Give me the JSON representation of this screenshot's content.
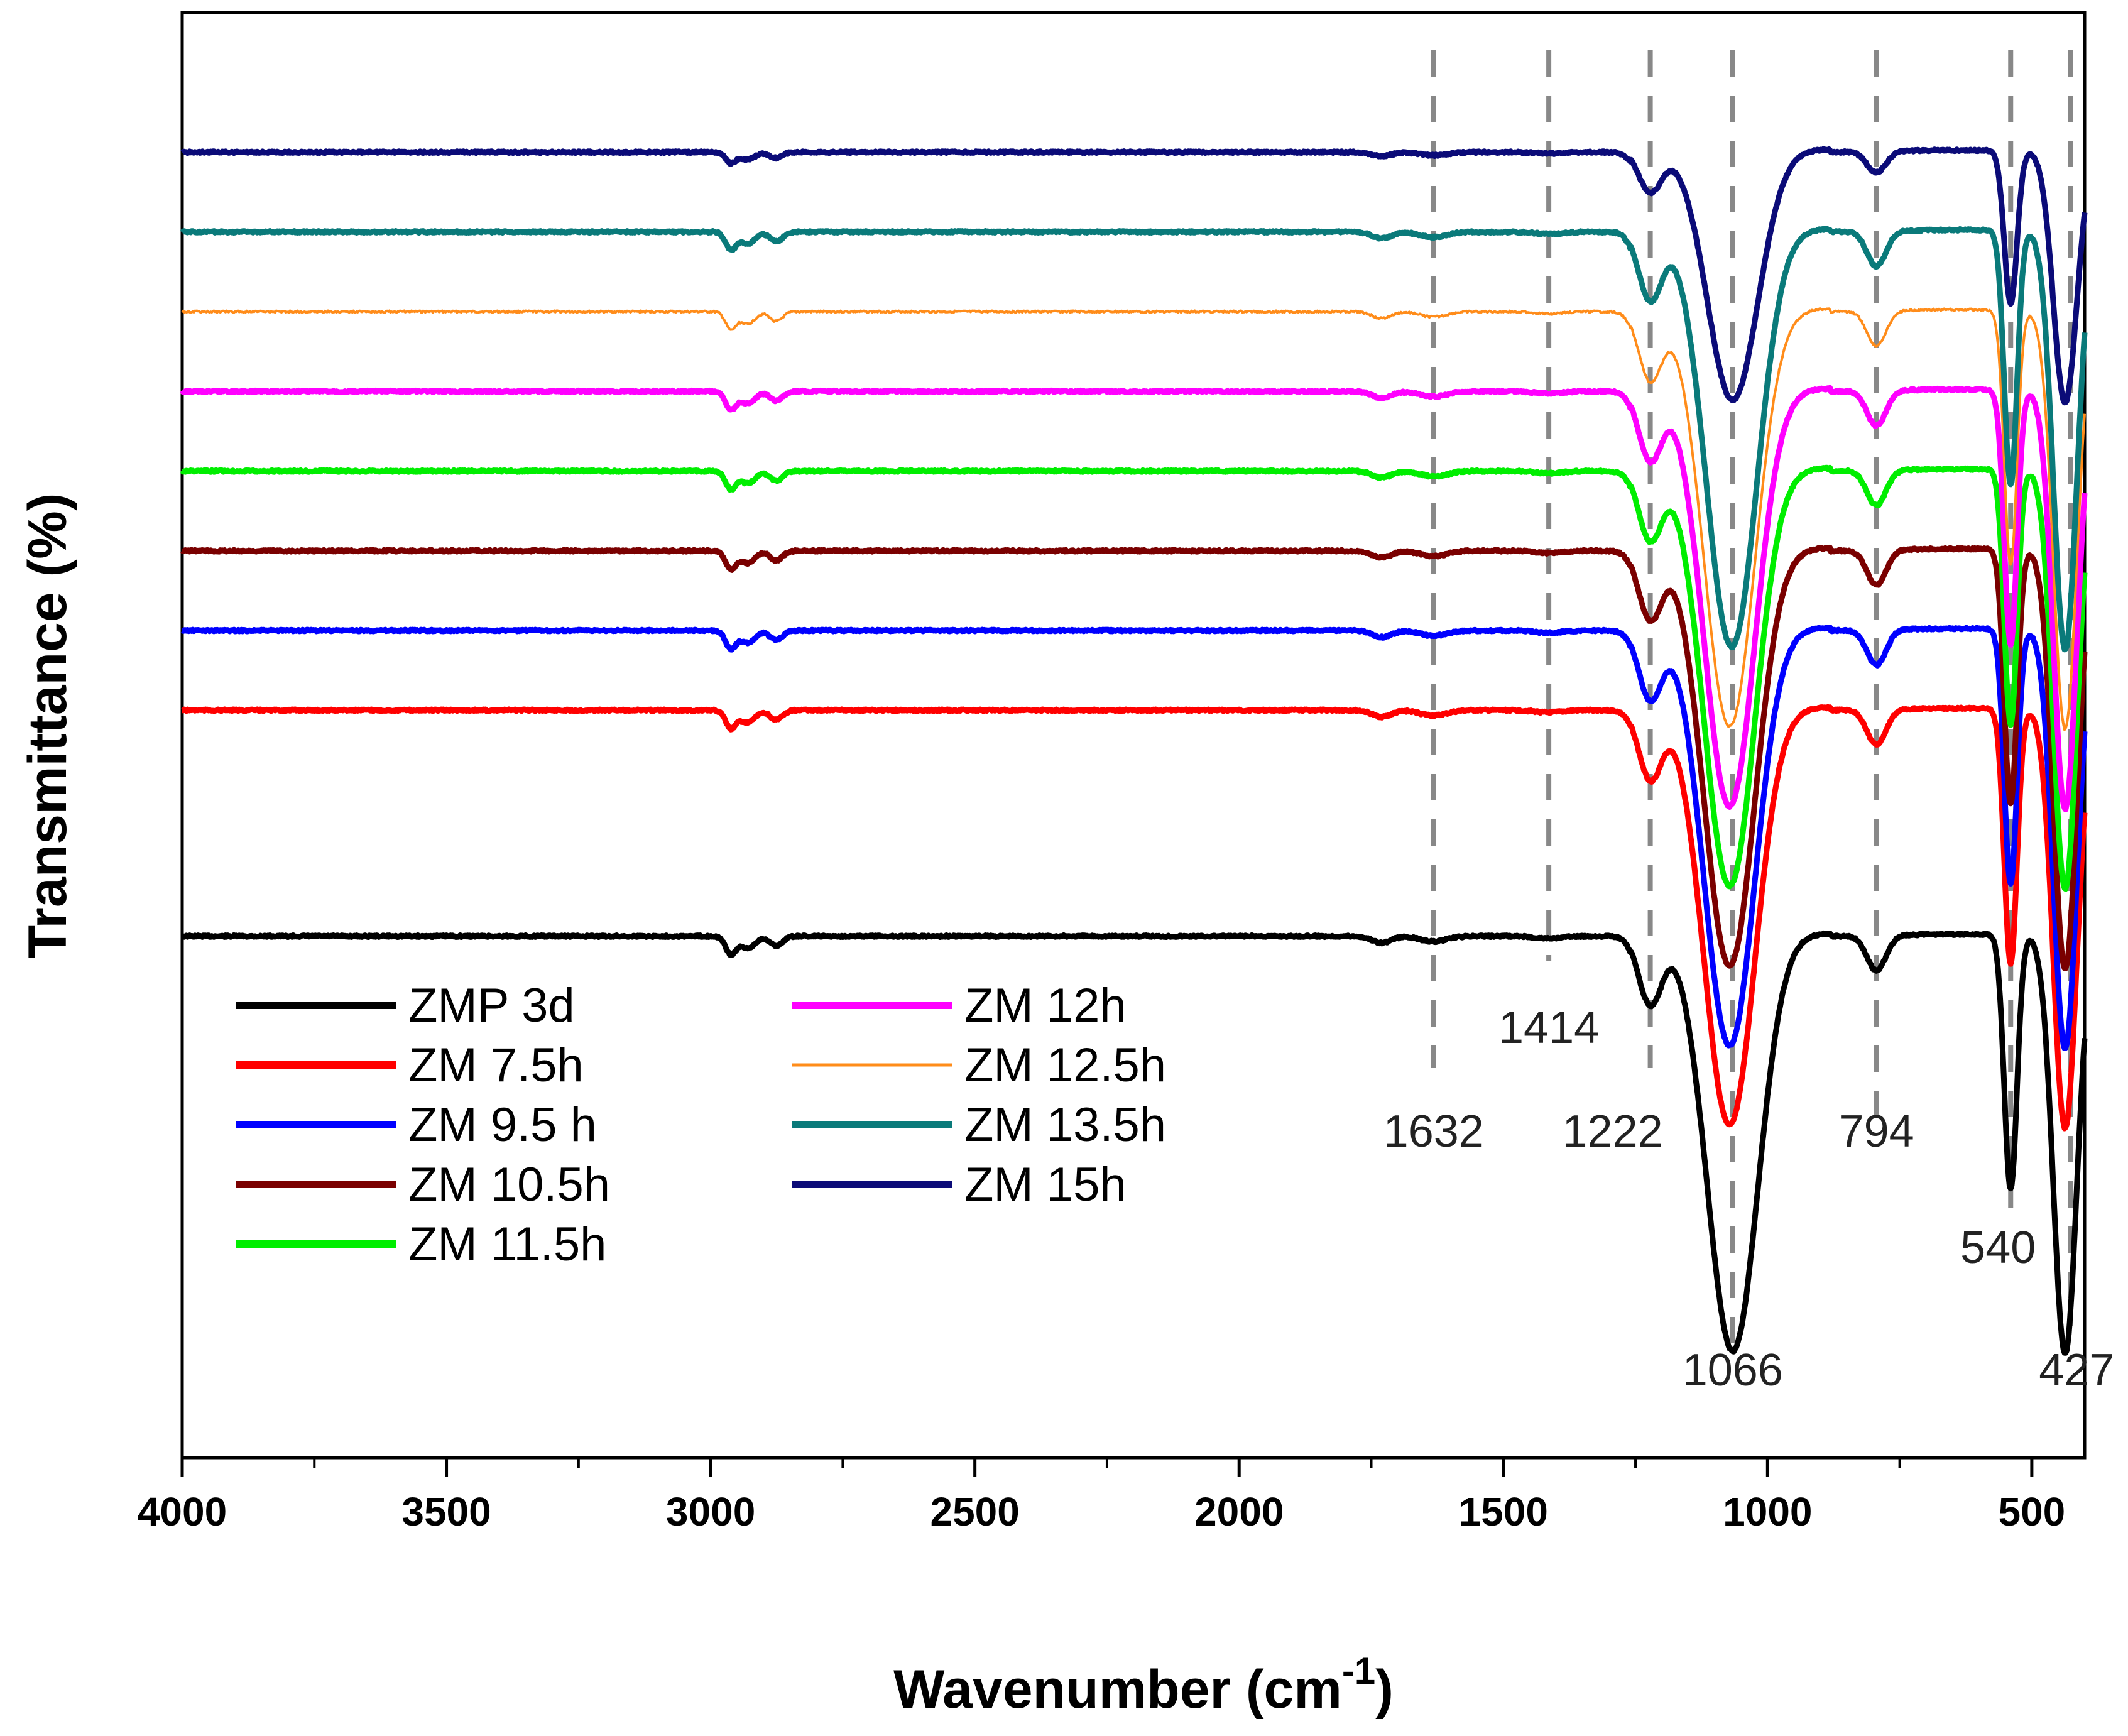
{
  "chart_data": {
    "type": "line",
    "xlabel": "Wavenumber (cm",
    "xlabel_sup": "-1",
    "xlabel_close": ")",
    "ylabel": "Transmittance (%)",
    "xlim": [
      4000,
      400
    ],
    "x_reversed": true,
    "y_ticks_shown": false,
    "grid": false,
    "legend_position": "bottom-left",
    "x_ticks": [
      4000,
      3500,
      3000,
      2500,
      2000,
      1500,
      1000,
      500
    ],
    "x_tick_labels": [
      "4000",
      "3500",
      "3000",
      "2500",
      "2000",
      "1500",
      "1000",
      "500"
    ],
    "y_units": "offset-stacked, arbitrary",
    "peak_markers": [
      {
        "x": 1632,
        "label": "1632"
      },
      {
        "x": 1414,
        "label": "1414"
      },
      {
        "x": 1222,
        "label": "1222"
      },
      {
        "x": 1066,
        "label": "1066"
      },
      {
        "x": 794,
        "label": "794"
      },
      {
        "x": 540,
        "label": "540"
      },
      {
        "x": 427,
        "label": "427"
      }
    ],
    "peak_marker_style": "dashed grey vertical lines",
    "series": [
      {
        "name": "ZMP 3d",
        "color": "#000000",
        "baseline": 0.0,
        "depth": 1.0,
        "ir_shift": 0
      },
      {
        "name": "ZM 7.5h",
        "color": "#ff0000",
        "baseline": 2.55,
        "depth": 1.0,
        "ir_shift": 6
      },
      {
        "name": "ZM 9.5 h",
        "color": "#0000ff",
        "baseline": 3.45,
        "depth": 1.0,
        "ir_shift": 6
      },
      {
        "name": "ZM 10.5h",
        "color": "#7a0000",
        "baseline": 4.35,
        "depth": 1.0,
        "ir_shift": 6
      },
      {
        "name": "ZM 11.5h",
        "color": "#00ee00",
        "baseline": 5.25,
        "depth": 1.0,
        "ir_shift": 6
      },
      {
        "name": "ZM 12h",
        "color": "#ff00ff",
        "baseline": 6.15,
        "depth": 1.0,
        "ir_shift": 6
      },
      {
        "name": "ZM 12.5h",
        "color": "#ff8c1a",
        "baseline": 7.05,
        "depth": 1.0,
        "ir_shift": 6
      },
      {
        "name": "ZM 13.5h",
        "color": "#0a7a7a",
        "baseline": 7.95,
        "depth": 1.0,
        "ir_shift": 2
      },
      {
        "name": "ZM 15h",
        "color": "#0b0b78",
        "baseline": 8.85,
        "depth": 0.6,
        "ir_shift": 0
      }
    ],
    "legend_layout": [
      [
        "ZMP 3d",
        "ZM 7.5h",
        "ZM 9.5 h",
        "ZM 10.5h",
        "ZM 11.5h"
      ],
      [
        "ZM 12h",
        "ZM 12.5h",
        "ZM 13.5h",
        "ZM 15h"
      ]
    ],
    "thin_series": [
      "ZM 12.5h"
    ]
  }
}
